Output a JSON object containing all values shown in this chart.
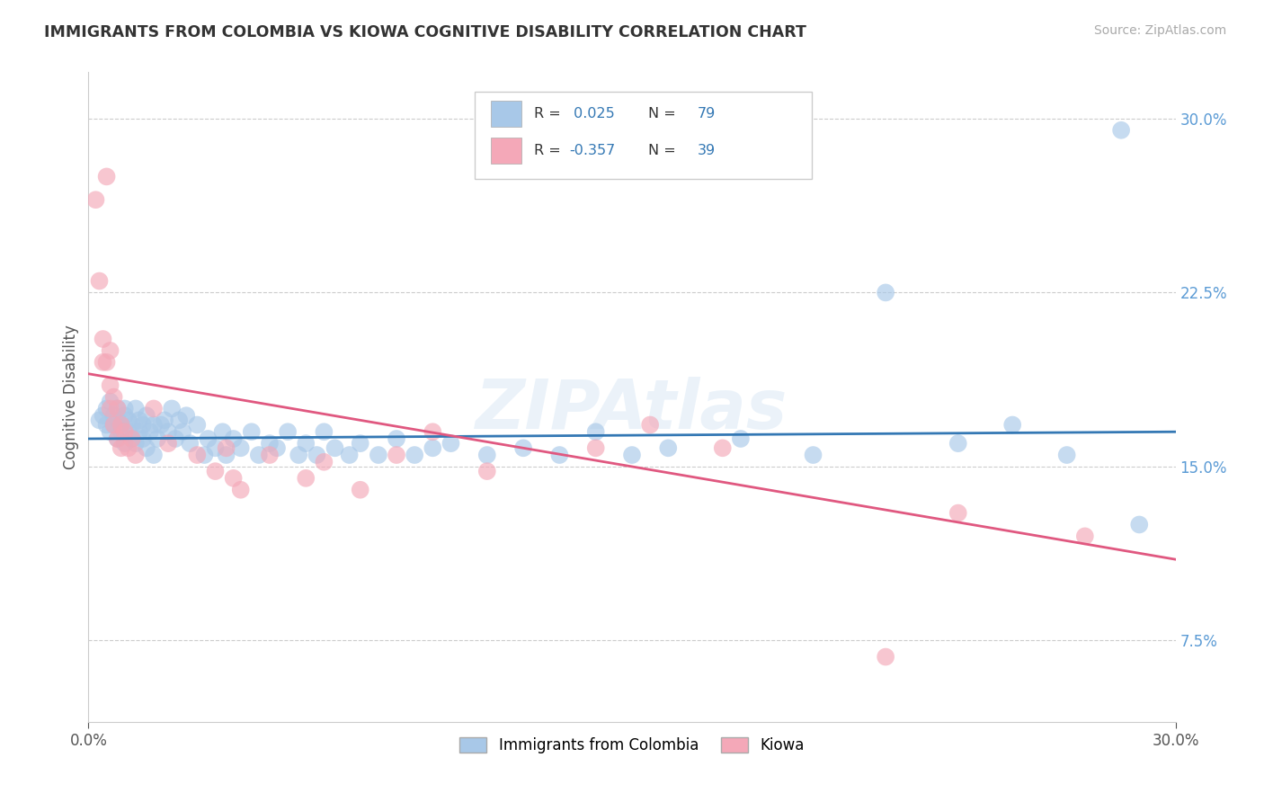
{
  "title": "IMMIGRANTS FROM COLOMBIA VS KIOWA COGNITIVE DISABILITY CORRELATION CHART",
  "source": "Source: ZipAtlas.com",
  "ylabel": "Cognitive Disability",
  "xlim": [
    0.0,
    0.3
  ],
  "ylim": [
    0.04,
    0.32
  ],
  "y_tick_vals": [
    0.075,
    0.15,
    0.225,
    0.3
  ],
  "y_tick_labels": [
    "7.5%",
    "15.0%",
    "22.5%",
    "30.0%"
  ],
  "legend_blue_label": "Immigrants from Colombia",
  "legend_pink_label": "Kiowa",
  "blue_color": "#a8c8e8",
  "pink_color": "#f4a8b8",
  "blue_line_color": "#3478b4",
  "pink_line_color": "#e05880",
  "watermark": "ZIPAtlas",
  "blue_scatter": [
    [
      0.003,
      0.17
    ],
    [
      0.004,
      0.172
    ],
    [
      0.005,
      0.168
    ],
    [
      0.005,
      0.175
    ],
    [
      0.006,
      0.178
    ],
    [
      0.006,
      0.165
    ],
    [
      0.007,
      0.172
    ],
    [
      0.007,
      0.168
    ],
    [
      0.008,
      0.175
    ],
    [
      0.008,
      0.162
    ],
    [
      0.008,
      0.17
    ],
    [
      0.009,
      0.165
    ],
    [
      0.009,
      0.168
    ],
    [
      0.01,
      0.172
    ],
    [
      0.01,
      0.16
    ],
    [
      0.01,
      0.175
    ],
    [
      0.011,
      0.165
    ],
    [
      0.011,
      0.17
    ],
    [
      0.012,
      0.168
    ],
    [
      0.012,
      0.162
    ],
    [
      0.013,
      0.175
    ],
    [
      0.013,
      0.16
    ],
    [
      0.014,
      0.165
    ],
    [
      0.014,
      0.17
    ],
    [
      0.015,
      0.168
    ],
    [
      0.015,
      0.162
    ],
    [
      0.016,
      0.172
    ],
    [
      0.016,
      0.158
    ],
    [
      0.017,
      0.165
    ],
    [
      0.018,
      0.168
    ],
    [
      0.018,
      0.155
    ],
    [
      0.019,
      0.162
    ],
    [
      0.02,
      0.168
    ],
    [
      0.021,
      0.17
    ],
    [
      0.022,
      0.165
    ],
    [
      0.023,
      0.175
    ],
    [
      0.024,
      0.162
    ],
    [
      0.025,
      0.17
    ],
    [
      0.026,
      0.165
    ],
    [
      0.027,
      0.172
    ],
    [
      0.028,
      0.16
    ],
    [
      0.03,
      0.168
    ],
    [
      0.032,
      0.155
    ],
    [
      0.033,
      0.162
    ],
    [
      0.035,
      0.158
    ],
    [
      0.037,
      0.165
    ],
    [
      0.038,
      0.155
    ],
    [
      0.04,
      0.162
    ],
    [
      0.042,
      0.158
    ],
    [
      0.045,
      0.165
    ],
    [
      0.047,
      0.155
    ],
    [
      0.05,
      0.16
    ],
    [
      0.052,
      0.158
    ],
    [
      0.055,
      0.165
    ],
    [
      0.058,
      0.155
    ],
    [
      0.06,
      0.16
    ],
    [
      0.063,
      0.155
    ],
    [
      0.065,
      0.165
    ],
    [
      0.068,
      0.158
    ],
    [
      0.072,
      0.155
    ],
    [
      0.075,
      0.16
    ],
    [
      0.08,
      0.155
    ],
    [
      0.085,
      0.162
    ],
    [
      0.09,
      0.155
    ],
    [
      0.095,
      0.158
    ],
    [
      0.1,
      0.16
    ],
    [
      0.11,
      0.155
    ],
    [
      0.12,
      0.158
    ],
    [
      0.13,
      0.155
    ],
    [
      0.14,
      0.165
    ],
    [
      0.15,
      0.155
    ],
    [
      0.16,
      0.158
    ],
    [
      0.18,
      0.162
    ],
    [
      0.2,
      0.155
    ],
    [
      0.22,
      0.225
    ],
    [
      0.24,
      0.16
    ],
    [
      0.255,
      0.168
    ],
    [
      0.27,
      0.155
    ],
    [
      0.285,
      0.295
    ],
    [
      0.29,
      0.125
    ]
  ],
  "pink_scatter": [
    [
      0.002,
      0.265
    ],
    [
      0.003,
      0.23
    ],
    [
      0.004,
      0.205
    ],
    [
      0.004,
      0.195
    ],
    [
      0.005,
      0.195
    ],
    [
      0.005,
      0.275
    ],
    [
      0.006,
      0.2
    ],
    [
      0.006,
      0.185
    ],
    [
      0.006,
      0.175
    ],
    [
      0.007,
      0.18
    ],
    [
      0.007,
      0.168
    ],
    [
      0.008,
      0.175
    ],
    [
      0.008,
      0.162
    ],
    [
      0.009,
      0.168
    ],
    [
      0.009,
      0.158
    ],
    [
      0.01,
      0.165
    ],
    [
      0.011,
      0.158
    ],
    [
      0.012,
      0.162
    ],
    [
      0.013,
      0.155
    ],
    [
      0.018,
      0.175
    ],
    [
      0.022,
      0.16
    ],
    [
      0.03,
      0.155
    ],
    [
      0.035,
      0.148
    ],
    [
      0.038,
      0.158
    ],
    [
      0.04,
      0.145
    ],
    [
      0.042,
      0.14
    ],
    [
      0.05,
      0.155
    ],
    [
      0.06,
      0.145
    ],
    [
      0.065,
      0.152
    ],
    [
      0.075,
      0.14
    ],
    [
      0.085,
      0.155
    ],
    [
      0.095,
      0.165
    ],
    [
      0.11,
      0.148
    ],
    [
      0.14,
      0.158
    ],
    [
      0.155,
      0.168
    ],
    [
      0.175,
      0.158
    ],
    [
      0.22,
      0.068
    ],
    [
      0.24,
      0.13
    ],
    [
      0.275,
      0.12
    ]
  ]
}
